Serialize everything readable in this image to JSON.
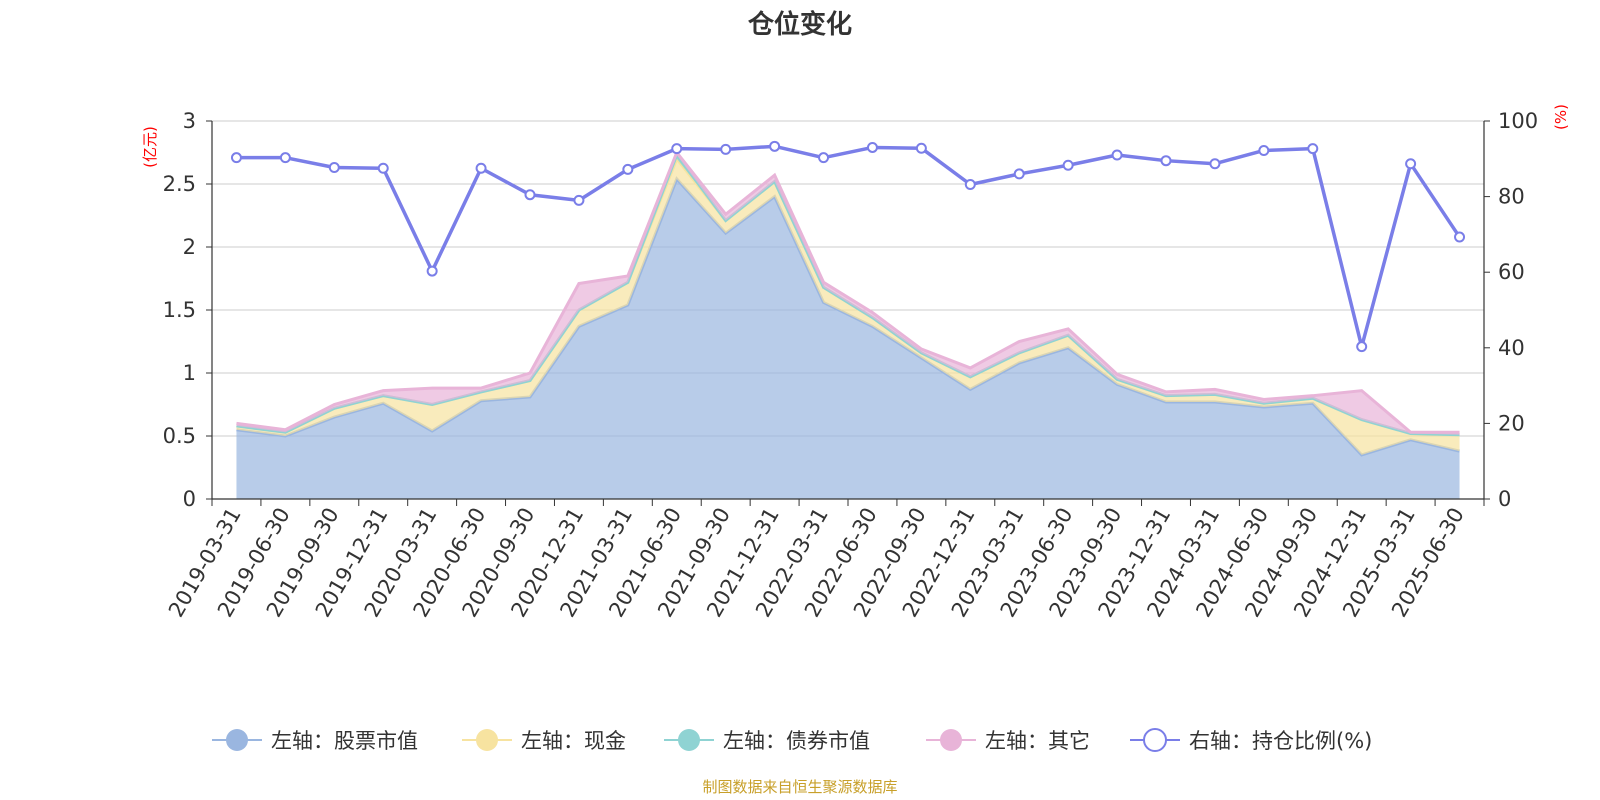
{
  "source_note": "制图数据来自恒生聚源数据库",
  "chart_data": {
    "type": "area",
    "title": "仓位变化",
    "left_axis": {
      "unit": "(亿元)",
      "ylim": [
        0,
        3
      ],
      "ticks": [
        "0",
        "0.5",
        "1",
        "1.5",
        "2",
        "2.5",
        "3"
      ]
    },
    "right_axis": {
      "unit": "(%)",
      "ylim": [
        0,
        100
      ],
      "ticks": [
        "0",
        "20",
        "40",
        "60",
        "80",
        "100"
      ]
    },
    "grid": true,
    "legend_position": "bottom",
    "categories": [
      "2019-03-31",
      "2019-06-30",
      "2019-09-30",
      "2019-12-31",
      "2020-03-31",
      "2020-06-30",
      "2020-09-30",
      "2020-12-31",
      "2021-03-31",
      "2021-06-30",
      "2021-09-30",
      "2021-12-31",
      "2022-03-31",
      "2022-06-30",
      "2022-09-30",
      "2022-12-31",
      "2023-03-31",
      "2023-06-30",
      "2023-09-30",
      "2023-12-31",
      "2024-03-31",
      "2024-06-30",
      "2024-09-30",
      "2024-12-31",
      "2025-03-31",
      "2025-06-30"
    ],
    "series": [
      {
        "name": "左轴：股票市值",
        "axis": "left",
        "kind": "stacked-area",
        "color": "#9ab6e0",
        "values": [
          0.55,
          0.5,
          0.65,
          0.76,
          0.54,
          0.78,
          0.81,
          1.37,
          1.54,
          2.54,
          2.11,
          2.4,
          1.56,
          1.37,
          1.12,
          0.87,
          1.08,
          1.2,
          0.91,
          0.77,
          0.77,
          0.73,
          0.76,
          0.35,
          0.47,
          0.38
        ]
      },
      {
        "name": "左轴：现金",
        "axis": "left",
        "kind": "stacked-area",
        "color": "#f7e3a0",
        "values": [
          0.03,
          0.03,
          0.07,
          0.06,
          0.21,
          0.07,
          0.13,
          0.13,
          0.18,
          0.16,
          0.1,
          0.12,
          0.12,
          0.07,
          0.04,
          0.1,
          0.08,
          0.1,
          0.04,
          0.05,
          0.06,
          0.03,
          0.04,
          0.28,
          0.05,
          0.13
        ]
      },
      {
        "name": "左轴：债券市值",
        "axis": "left",
        "kind": "stacked-area",
        "color": "#8fd3d3",
        "values": [
          0,
          0,
          0,
          0,
          0,
          0,
          0,
          0,
          0,
          0.03,
          0,
          0,
          0,
          0,
          0,
          0,
          0,
          0,
          0,
          0,
          0,
          0,
          0,
          0,
          0,
          0
        ]
      },
      {
        "name": "左轴：其它",
        "axis": "left",
        "kind": "stacked-area",
        "color": "#e8b4d8",
        "values": [
          0.02,
          0.02,
          0.03,
          0.04,
          0.13,
          0.03,
          0.06,
          0.21,
          0.05,
          0.02,
          0.05,
          0.05,
          0.04,
          0.04,
          0.03,
          0.07,
          0.09,
          0.05,
          0.04,
          0.03,
          0.04,
          0.03,
          0.02,
          0.23,
          0.01,
          0.02
        ]
      },
      {
        "name": "右轴：持仓比例(%)",
        "axis": "right",
        "kind": "line",
        "color": "#7a7ee8",
        "values": [
          90.3,
          90.3,
          87.7,
          87.5,
          60.3,
          87.5,
          80.5,
          79.0,
          87.2,
          92.7,
          92.5,
          93.3,
          90.3,
          93.0,
          92.8,
          83.2,
          86.0,
          88.3,
          91.0,
          89.5,
          88.7,
          92.2,
          92.7,
          40.3,
          88.7,
          69.3
        ]
      }
    ]
  }
}
